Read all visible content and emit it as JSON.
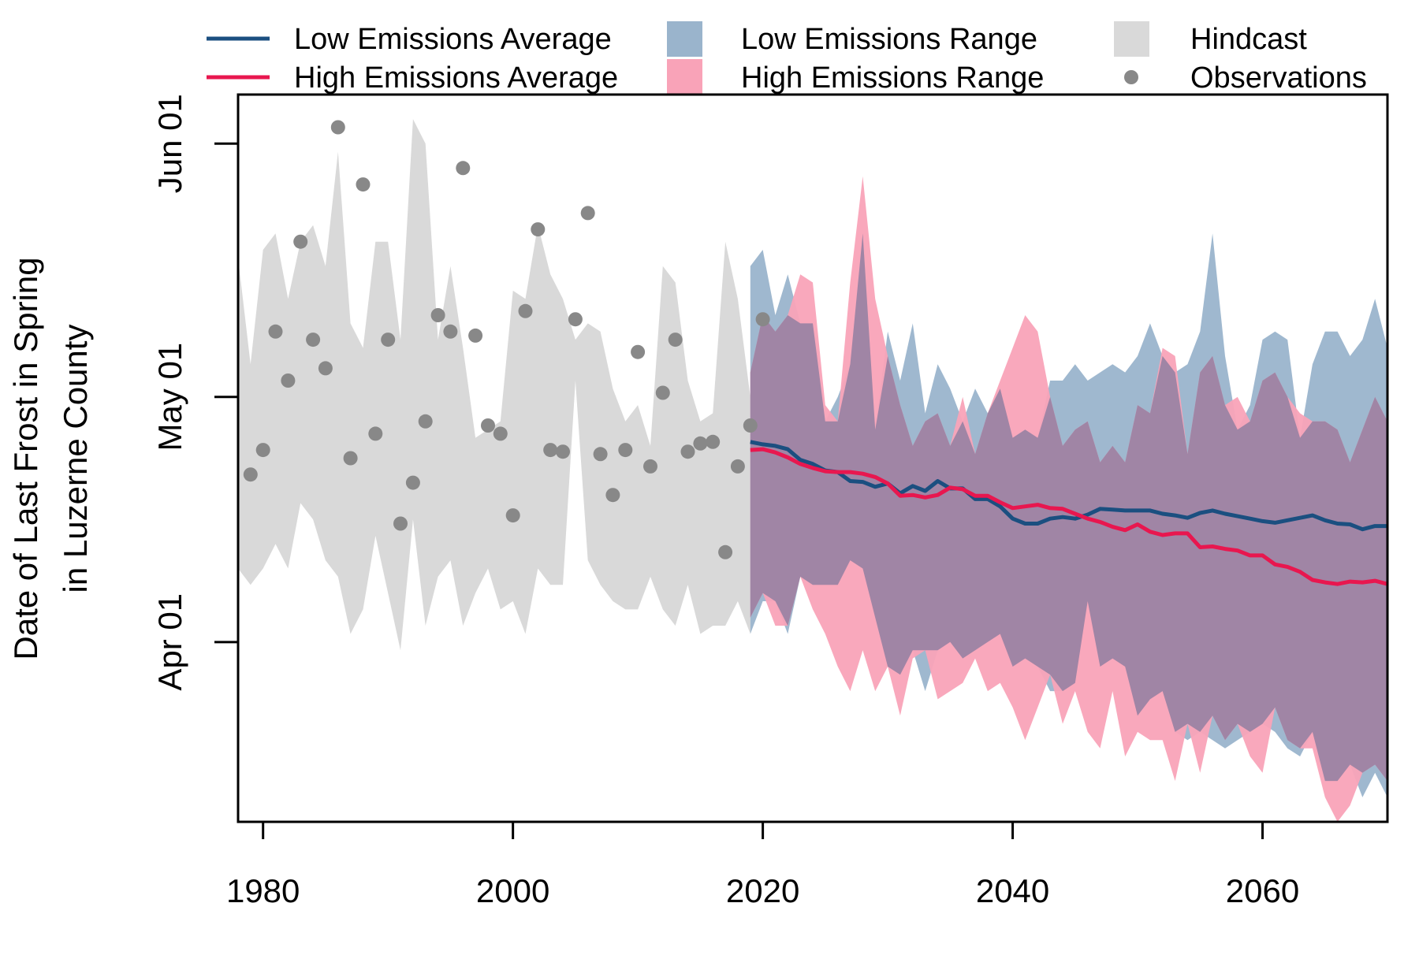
{
  "chart_data": {
    "type": "line",
    "ylabel_line1": "Date of Last Frost in Spring",
    "ylabel_line2": "in Luzerne County",
    "xlim": [
      1978,
      2070
    ],
    "ylim_day_of_year": [
      69,
      158
    ],
    "x_ticks": [
      {
        "value": 1980,
        "label": "1980"
      },
      {
        "value": 2000,
        "label": "2000"
      },
      {
        "value": 2020,
        "label": "2020"
      },
      {
        "value": 2040,
        "label": "2040"
      },
      {
        "value": 2060,
        "label": "2060"
      }
    ],
    "y_ticks": [
      {
        "value": 91,
        "label": "Apr 01"
      },
      {
        "value": 121,
        "label": "May 01"
      },
      {
        "value": 152,
        "label": "Jun 01"
      }
    ],
    "legend": {
      "placement": "top, outside plot",
      "entries": [
        {
          "key": "low_avg",
          "label": "Low Emissions Average",
          "kind": "line",
          "color": "#1b4f80"
        },
        {
          "key": "high_avg",
          "label": "High Emissions Average",
          "kind": "line",
          "color": "#e8174f"
        },
        {
          "key": "low_range",
          "label": "Low Emissions Range",
          "kind": "fill",
          "color": "#9ab4cc"
        },
        {
          "key": "high_range",
          "label": "High Emissions Range",
          "kind": "fill",
          "color": "#f9a3b8"
        },
        {
          "key": "hindcast",
          "label": "Hindcast",
          "kind": "fill",
          "color": "#d9d9d9"
        },
        {
          "key": "obs",
          "label": "Observations",
          "kind": "point",
          "color": "#888888"
        }
      ]
    },
    "colors": {
      "hindcast": "#d9d9d9",
      "low_range": "#9ab4cc",
      "high_range": "#f9a3b8",
      "overlap": "#a085a5",
      "low_avg": "#1b4f80",
      "high_avg": "#e8174f",
      "obs": "#888888"
    },
    "hindcast": {
      "x": [
        1978,
        1979,
        1980,
        1981,
        1982,
        1983,
        1984,
        1985,
        1986,
        1987,
        1988,
        1989,
        1990,
        1991,
        1992,
        1993,
        1994,
        1995,
        1996,
        1997,
        1998,
        1999,
        2000,
        2001,
        2002,
        2003,
        2004,
        2005,
        2006,
        2007,
        2008,
        2009,
        2010,
        2011,
        2012,
        2013,
        2014,
        2015,
        2016,
        2017,
        2018,
        2019
      ],
      "upper": [
        138,
        125,
        139,
        141,
        133,
        140,
        142,
        137,
        151,
        130,
        127,
        140,
        140,
        128,
        155,
        152,
        128,
        137,
        127,
        116,
        117,
        118,
        134,
        133,
        142,
        136,
        133,
        128,
        130,
        129,
        122,
        118,
        120,
        115,
        137,
        135,
        123,
        118,
        119,
        140,
        133,
        121
      ],
      "lower": [
        100,
        98,
        100,
        103,
        100,
        108,
        106,
        101,
        99,
        92,
        95,
        104,
        97,
        90,
        106,
        93,
        99,
        101,
        93,
        97,
        100,
        95,
        96,
        92,
        100,
        98,
        98,
        123,
        101,
        98,
        96,
        95,
        95,
        99,
        95,
        93,
        98,
        92,
        93,
        93,
        96,
        92
      ]
    },
    "low_range": {
      "x": [
        2019,
        2020,
        2021,
        2022,
        2023,
        2024,
        2025,
        2026,
        2027,
        2028,
        2029,
        2030,
        2031,
        2032,
        2033,
        2034,
        2035,
        2036,
        2037,
        2038,
        2039,
        2040,
        2041,
        2042,
        2043,
        2044,
        2045,
        2046,
        2047,
        2048,
        2049,
        2050,
        2051,
        2052,
        2053,
        2054,
        2055,
        2056,
        2057,
        2058,
        2059,
        2060,
        2061,
        2062,
        2063,
        2064,
        2065,
        2066,
        2067,
        2068,
        2069,
        2070
      ],
      "upper": [
        137,
        139,
        131,
        136,
        130,
        130,
        118,
        121,
        125,
        141,
        117,
        129,
        123,
        130,
        119,
        125,
        122,
        118,
        122,
        119,
        122,
        116,
        117,
        116,
        123,
        123,
        125,
        123,
        124,
        125,
        124,
        126,
        130,
        126,
        124,
        125,
        129,
        141,
        126,
        117,
        120,
        128,
        129,
        128,
        116,
        125,
        129,
        129,
        126,
        128,
        133,
        127
      ],
      "lower": [
        92,
        96,
        96,
        92,
        99,
        98,
        98,
        98,
        101,
        100,
        94,
        88,
        87,
        90,
        85,
        90,
        91,
        89,
        90,
        91,
        92,
        88,
        89,
        88,
        85,
        85,
        86,
        96,
        88,
        89,
        88,
        82,
        84,
        85,
        80,
        79,
        80,
        79,
        78,
        79,
        80,
        81,
        80,
        78,
        77,
        80,
        74,
        74,
        76,
        72,
        75,
        72
      ]
    },
    "high_range": {
      "x": [
        2019,
        2020,
        2021,
        2022,
        2023,
        2024,
        2025,
        2026,
        2027,
        2028,
        2029,
        2030,
        2031,
        2032,
        2033,
        2034,
        2035,
        2036,
        2037,
        2038,
        2039,
        2040,
        2041,
        2042,
        2043,
        2044,
        2045,
        2046,
        2047,
        2048,
        2049,
        2050,
        2051,
        2052,
        2053,
        2054,
        2055,
        2056,
        2057,
        2058,
        2059,
        2060,
        2061,
        2062,
        2063,
        2064,
        2065,
        2066,
        2067,
        2068,
        2069,
        2070
      ],
      "upper": [
        124,
        131,
        129,
        131,
        136,
        135,
        120,
        118,
        135,
        148,
        133,
        126,
        120,
        115,
        118,
        119,
        115,
        121,
        114,
        119,
        123,
        127,
        131,
        129,
        121,
        115,
        117,
        118,
        113,
        115,
        113,
        120,
        119,
        127,
        126,
        114,
        124,
        126,
        120,
        121,
        118,
        123,
        124,
        121,
        119,
        118,
        118,
        117,
        113,
        117,
        121,
        118
      ],
      "lower": [
        94,
        97,
        93,
        93,
        99,
        95,
        92,
        88,
        85,
        90,
        85,
        88,
        82,
        89,
        90,
        84,
        85,
        86,
        89,
        85,
        86,
        83,
        79,
        83,
        87,
        81,
        85,
        80,
        78,
        85,
        77,
        80,
        79,
        79,
        74,
        81,
        75,
        82,
        79,
        81,
        77,
        75,
        83,
        79,
        78,
        78,
        72,
        69,
        71,
        75,
        76,
        74
      ]
    },
    "low_avg": {
      "x": [
        2019,
        2020,
        2021,
        2022,
        2023,
        2024,
        2025,
        2026,
        2027,
        2028,
        2029,
        2030,
        2031,
        2032,
        2033,
        2034,
        2035,
        2036,
        2037,
        2038,
        2039,
        2040,
        2041,
        2042,
        2043,
        2044,
        2045,
        2046,
        2047,
        2048,
        2049,
        2050,
        2051,
        2052,
        2053,
        2054,
        2055,
        2056,
        2057,
        2058,
        2059,
        2060,
        2061,
        2062,
        2063,
        2064,
        2065,
        2066,
        2067,
        2068,
        2069,
        2070
      ],
      "values": [
        115.5,
        115.2,
        115,
        114.6,
        113.3,
        112.8,
        112,
        111.8,
        110.7,
        110.6,
        110,
        110.4,
        109.2,
        110.1,
        109.5,
        110.7,
        109.8,
        109.8,
        108.5,
        108.5,
        107.6,
        106.1,
        105.5,
        105.5,
        106.1,
        106.3,
        106.1,
        106.6,
        107.3,
        107.2,
        107.1,
        107.1,
        107.1,
        106.7,
        106.5,
        106.2,
        106.8,
        107.1,
        106.7,
        106.4,
        106.1,
        105.8,
        105.6,
        105.9,
        106.2,
        106.5,
        105.9,
        105.5,
        105.4,
        104.8,
        105.2,
        105.2
      ]
    },
    "high_avg": {
      "x": [
        2019,
        2020,
        2021,
        2022,
        2023,
        2024,
        2025,
        2026,
        2027,
        2028,
        2029,
        2030,
        2031,
        2032,
        2033,
        2034,
        2035,
        2036,
        2037,
        2038,
        2039,
        2040,
        2041,
        2042,
        2043,
        2044,
        2045,
        2046,
        2047,
        2048,
        2049,
        2050,
        2051,
        2052,
        2053,
        2054,
        2055,
        2056,
        2057,
        2058,
        2059,
        2060,
        2061,
        2062,
        2063,
        2064,
        2065,
        2066,
        2067,
        2068,
        2069,
        2070
      ],
      "values": [
        114.5,
        114.6,
        114.2,
        113.6,
        112.8,
        112.3,
        111.9,
        111.8,
        111.8,
        111.6,
        111.2,
        110.4,
        108.9,
        109,
        108.7,
        109,
        109.9,
        109.7,
        108.9,
        108.9,
        108.1,
        107.4,
        107.6,
        107.8,
        107.4,
        107.3,
        106.7,
        106.1,
        105.7,
        105.1,
        104.7,
        105.4,
        104.5,
        104.1,
        104.3,
        104.3,
        102.6,
        102.7,
        102.4,
        102.2,
        101.6,
        101.6,
        100.5,
        100.2,
        99.6,
        98.6,
        98.3,
        98.1,
        98.4,
        98.3,
        98.5,
        98.1
      ]
    },
    "observations": {
      "x": [
        1979,
        1980,
        1981,
        1982,
        1983,
        1984,
        1985,
        1986,
        1987,
        1988,
        1989,
        1990,
        1991,
        1992,
        1993,
        1994,
        1995,
        1996,
        1997,
        1998,
        1999,
        2000,
        2001,
        2002,
        2003,
        2004,
        2005,
        2006,
        2007,
        2008,
        2009,
        2010,
        2011,
        2012,
        2013,
        2014,
        2015,
        2016,
        2017,
        2018,
        2019,
        2020
      ],
      "y": [
        111.5,
        114.5,
        129,
        123,
        140,
        128,
        124.5,
        154,
        113.5,
        147,
        116.5,
        128,
        105.5,
        110.5,
        118,
        131,
        129,
        149,
        128.5,
        117.5,
        116.5,
        106.5,
        131.5,
        141.5,
        114.5,
        114.3,
        130.5,
        143.5,
        114,
        109,
        114.5,
        126.5,
        112.5,
        121.5,
        128,
        114.3,
        115.3,
        115.5,
        102,
        112.5,
        117.5,
        130.5
      ]
    }
  }
}
